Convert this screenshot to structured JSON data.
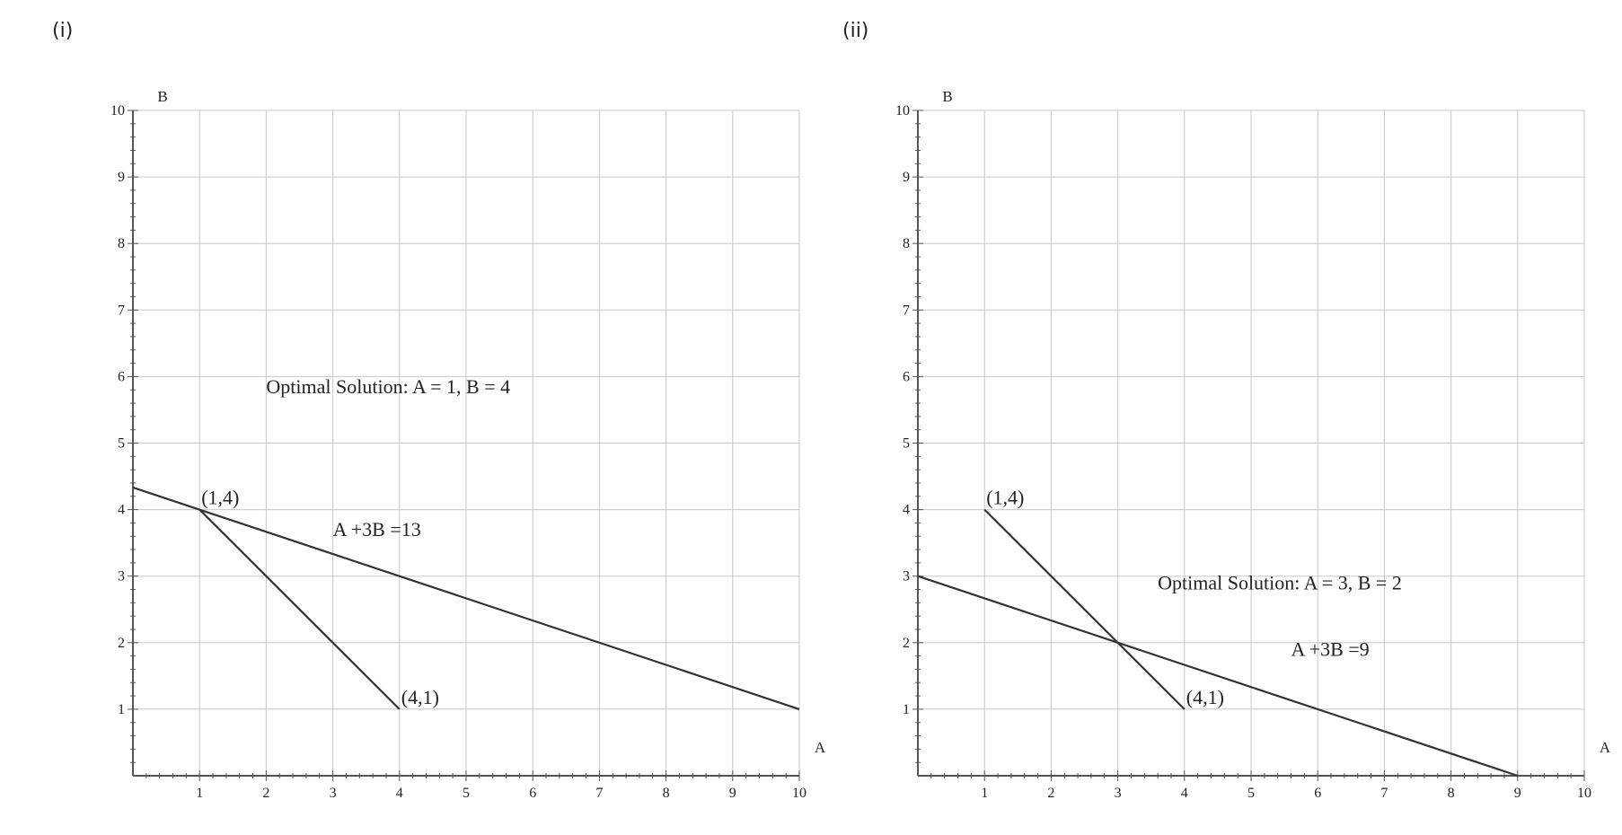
{
  "panel_labels": [
    "(i)",
    "(ii)"
  ],
  "chart_data": [
    {
      "type": "line",
      "panel": "(i)",
      "xlabel": "A",
      "ylabel": "B",
      "xlim": [
        0,
        10
      ],
      "ylim": [
        0,
        10
      ],
      "x_ticks": [
        1,
        2,
        3,
        4,
        5,
        6,
        7,
        8,
        9,
        10
      ],
      "y_ticks": [
        1,
        2,
        3,
        4,
        5,
        6,
        7,
        8,
        9,
        10
      ],
      "grid": true,
      "series": [
        {
          "points": [
            [
              1,
              4
            ],
            [
              4,
              1
            ]
          ]
        },
        {
          "points": [
            [
              0,
              4.333
            ],
            [
              10,
              1
            ]
          ]
        }
      ],
      "annotations": [
        {
          "text": "(1,4)",
          "x": 1,
          "y": 4
        },
        {
          "text": "(4,1)",
          "x": 4,
          "y": 1
        },
        {
          "text": "A +3B =13",
          "x": 3,
          "y": 3.6
        },
        {
          "text": "Optimal Solution: A  = 1, B = 4",
          "x": 2,
          "y": 5.75
        }
      ]
    },
    {
      "type": "line",
      "panel": "(ii)",
      "xlabel": "A",
      "ylabel": "B",
      "xlim": [
        0,
        10
      ],
      "ylim": [
        0,
        10
      ],
      "x_ticks": [
        1,
        2,
        3,
        4,
        5,
        6,
        7,
        8,
        9,
        10
      ],
      "y_ticks": [
        1,
        2,
        3,
        4,
        5,
        6,
        7,
        8,
        9,
        10
      ],
      "grid": true,
      "series": [
        {
          "points": [
            [
              1,
              4
            ],
            [
              4,
              1
            ]
          ]
        },
        {
          "points": [
            [
              0,
              3
            ],
            [
              9,
              0
            ]
          ]
        }
      ],
      "annotations": [
        {
          "text": "(1,4)",
          "x": 1,
          "y": 4
        },
        {
          "text": "(4,1)",
          "x": 4,
          "y": 1
        },
        {
          "text": "Optimal Solution: A  = 3, B = 2",
          "x": 3.6,
          "y": 2.8
        },
        {
          "text": "A +3B =9",
          "x": 5.6,
          "y": 1.8
        }
      ]
    }
  ]
}
